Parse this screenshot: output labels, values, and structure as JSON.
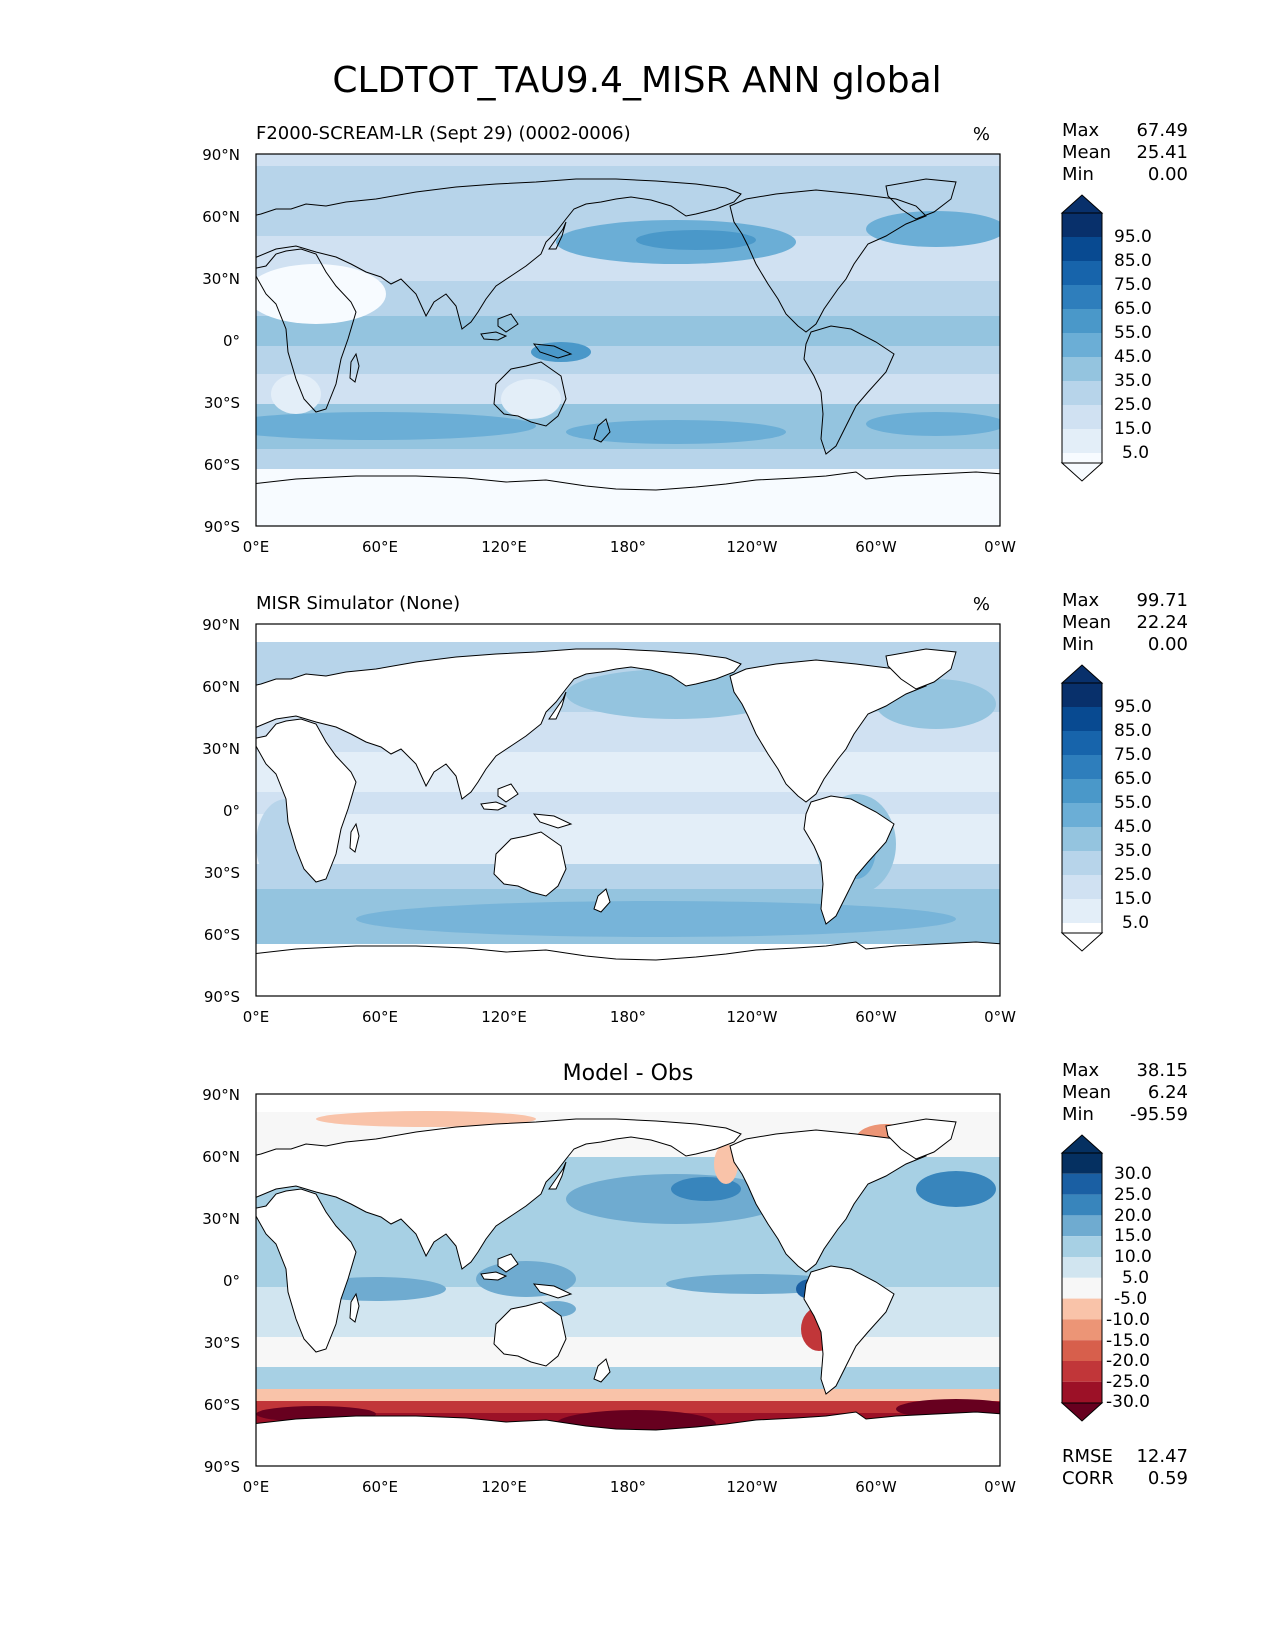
{
  "title": "CLDTOT_TAU9.4_MISR ANN global",
  "colors": {
    "blues": [
      "#f7fbff",
      "#e3eef8",
      "#d0e1f2",
      "#b7d4ea",
      "#94c4df",
      "#6baed6",
      "#4a98c9",
      "#2e7ebc",
      "#1764ab",
      "#084a91",
      "#08306b"
    ],
    "diff": [
      "#67001f",
      "#9c1127",
      "#c13639",
      "#d75f4c",
      "#ec9576",
      "#f9c3a9",
      "#f7f7f7",
      "#d1e5f0",
      "#a7d0e4",
      "#6fabd0",
      "#3885bc",
      "#1a5fa3",
      "#053061"
    ],
    "land_outline": "#000000",
    "ocean_base": "#ffffff"
  },
  "chart_data": [
    {
      "type": "heatmap",
      "panel": "test",
      "title": "F2000-SCREAM-LR (Sept 29) (0002-0006)",
      "units": "%",
      "stats": {
        "max_label": "Max",
        "max": "67.49",
        "mean_label": "Mean",
        "mean": "25.41",
        "min_label": "Min",
        "min": "0.00"
      },
      "x_ticks": [
        "0°E",
        "60°E",
        "120°E",
        "180°",
        "120°W",
        "60°W",
        "0°W"
      ],
      "y_ticks": [
        "90°N",
        "60°N",
        "30°N",
        "0°",
        "30°S",
        "60°S",
        "90°S"
      ],
      "xlim": [
        0,
        360
      ],
      "ylim": [
        -90,
        90
      ],
      "colorbar": {
        "ticks": [
          "95.0",
          "85.0",
          "75.0",
          "65.0",
          "55.0",
          "45.0",
          "35.0",
          "25.0",
          "15.0",
          "5.0"
        ],
        "extend": "both"
      }
    },
    {
      "type": "heatmap",
      "panel": "reference",
      "title": "MISR Simulator (None)",
      "units": "%",
      "stats": {
        "max_label": "Max",
        "max": "99.71",
        "mean_label": "Mean",
        "mean": "22.24",
        "min_label": "Min",
        "min": "0.00"
      },
      "x_ticks": [
        "0°E",
        "60°E",
        "120°E",
        "180°",
        "120°W",
        "60°W",
        "0°W"
      ],
      "y_ticks": [
        "90°N",
        "60°N",
        "30°N",
        "0°",
        "30°S",
        "60°S",
        "90°S"
      ],
      "xlim": [
        0,
        360
      ],
      "ylim": [
        -90,
        90
      ],
      "colorbar": {
        "ticks": [
          "95.0",
          "85.0",
          "75.0",
          "65.0",
          "55.0",
          "45.0",
          "35.0",
          "25.0",
          "15.0",
          "5.0"
        ],
        "extend": "both"
      }
    },
    {
      "type": "heatmap",
      "panel": "difference",
      "title": "Model - Obs",
      "units": "",
      "stats": {
        "max_label": "Max",
        "max": "38.15",
        "mean_label": "Mean",
        "mean": "6.24",
        "min_label": "Min",
        "min": "-95.59"
      },
      "x_ticks": [
        "0°E",
        "60°E",
        "120°E",
        "180°",
        "120°W",
        "60°W",
        "0°W"
      ],
      "y_ticks": [
        "90°N",
        "60°N",
        "30°N",
        "0°",
        "30°S",
        "60°S",
        "90°S"
      ],
      "xlim": [
        0,
        360
      ],
      "ylim": [
        -90,
        90
      ],
      "colorbar": {
        "ticks": [
          "30.0",
          "25.0",
          "20.0",
          "15.0",
          "10.0",
          "5.0",
          "-5.0",
          "-10.0",
          "-15.0",
          "-20.0",
          "-25.0",
          "-30.0"
        ],
        "extend": "both"
      },
      "metrics": {
        "rmse_label": "RMSE",
        "rmse": "12.47",
        "corr_label": "CORR",
        "corr": "0.59"
      }
    }
  ]
}
